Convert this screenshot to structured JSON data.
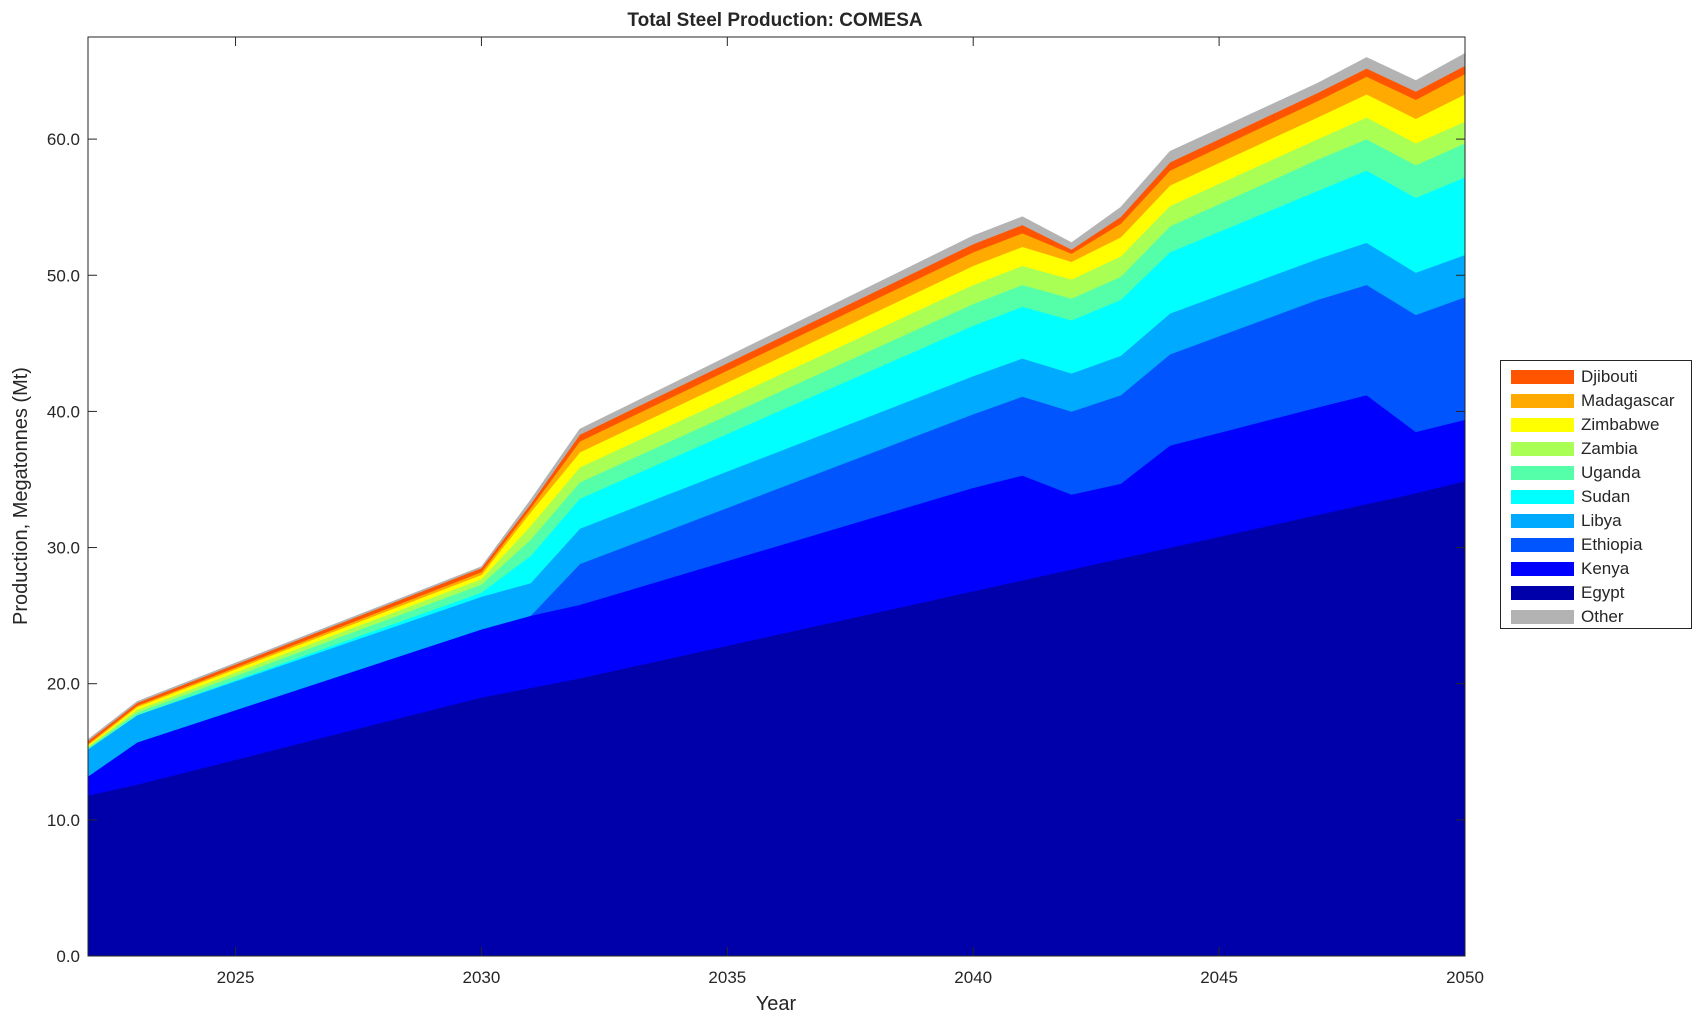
{
  "chart_data": {
    "type": "area",
    "stacked": true,
    "title": "Total Steel Production: COMESA",
    "xlabel": "Year",
    "ylabel": "Production, Megatonnes (Mt)",
    "xlim": [
      2022,
      2050
    ],
    "ylim": [
      0,
      67.5
    ],
    "x": [
      2022,
      2023,
      2030,
      2031,
      2032,
      2040,
      2041,
      2042,
      2043,
      2044,
      2047,
      2048,
      2049,
      2050
    ],
    "x_ticks": [
      2025,
      2030,
      2035,
      2040,
      2045,
      2050
    ],
    "y_ticks": [
      0,
      10,
      20,
      30,
      40,
      50,
      60
    ],
    "y_tick_labels": [
      "0.0",
      "10.0",
      "20.0",
      "30.0",
      "40.0",
      "50.0",
      "60.0"
    ],
    "legend_position": "right-outside",
    "grid": false,
    "series": [
      {
        "name": "Egypt",
        "color": "#0000AA",
        "values": [
          11.8,
          12.6,
          19.0,
          19.7,
          20.4,
          26.8,
          27.6,
          28.4,
          29.2,
          30.0,
          32.4,
          33.2,
          34.0,
          34.9
        ]
      },
      {
        "name": "Kenya",
        "color": "#0000FF",
        "values": [
          1.4,
          3.1,
          5.0,
          5.3,
          5.4,
          7.6,
          7.7,
          5.5,
          5.5,
          7.5,
          7.9,
          8.0,
          4.5,
          4.5
        ]
      },
      {
        "name": "Ethiopia",
        "color": "#0055FF",
        "values": [
          0,
          0,
          0,
          0,
          3.0,
          5.4,
          5.8,
          6.1,
          6.5,
          6.7,
          7.9,
          8.1,
          8.6,
          9.0
        ]
      },
      {
        "name": "Libya",
        "color": "#00AAFF",
        "values": [
          2.0,
          2.0,
          2.4,
          2.4,
          2.6,
          2.8,
          2.8,
          2.8,
          2.9,
          3.0,
          3.0,
          3.1,
          3.1,
          3.1
        ]
      },
      {
        "name": "Sudan",
        "color": "#00FFFF",
        "values": [
          0,
          0,
          0.3,
          2.0,
          2.2,
          3.7,
          3.8,
          3.9,
          4.1,
          4.5,
          5.0,
          5.3,
          5.5,
          5.7
        ]
      },
      {
        "name": "Uganda",
        "color": "#55FFAA",
        "values": [
          0.1,
          0.2,
          0.6,
          1.2,
          1.2,
          1.6,
          1.6,
          1.6,
          1.7,
          1.9,
          2.3,
          2.3,
          2.4,
          2.5
        ]
      },
      {
        "name": "Zambia",
        "color": "#AAFF55",
        "values": [
          0.1,
          0.2,
          0.4,
          1.0,
          1.1,
          1.4,
          1.4,
          1.4,
          1.5,
          1.5,
          1.5,
          1.6,
          1.6,
          1.6
        ]
      },
      {
        "name": "Zimbabwe",
        "color": "#FFFF00",
        "values": [
          0.1,
          0.2,
          0.3,
          1.0,
          1.1,
          1.4,
          1.4,
          1.3,
          1.4,
          1.5,
          1.6,
          1.7,
          1.8,
          2.0
        ]
      },
      {
        "name": "Madagascar",
        "color": "#FFAA00",
        "values": [
          0.1,
          0.1,
          0.2,
          0.3,
          0.8,
          1.0,
          1.0,
          0.6,
          1.0,
          1.1,
          1.2,
          1.3,
          1.4,
          1.5
        ]
      },
      {
        "name": "Djibouti",
        "color": "#FF5500",
        "values": [
          0.2,
          0.2,
          0.3,
          0.3,
          0.5,
          0.6,
          0.6,
          0.3,
          0.5,
          0.6,
          0.6,
          0.6,
          0.6,
          0.6
        ]
      },
      {
        "name": "Other",
        "color": "#B3B3B3",
        "values": [
          0.1,
          0.1,
          0.1,
          0.3,
          0.4,
          0.6,
          0.6,
          0.5,
          0.7,
          0.8,
          0.7,
          0.8,
          0.8,
          0.9
        ]
      }
    ]
  }
}
